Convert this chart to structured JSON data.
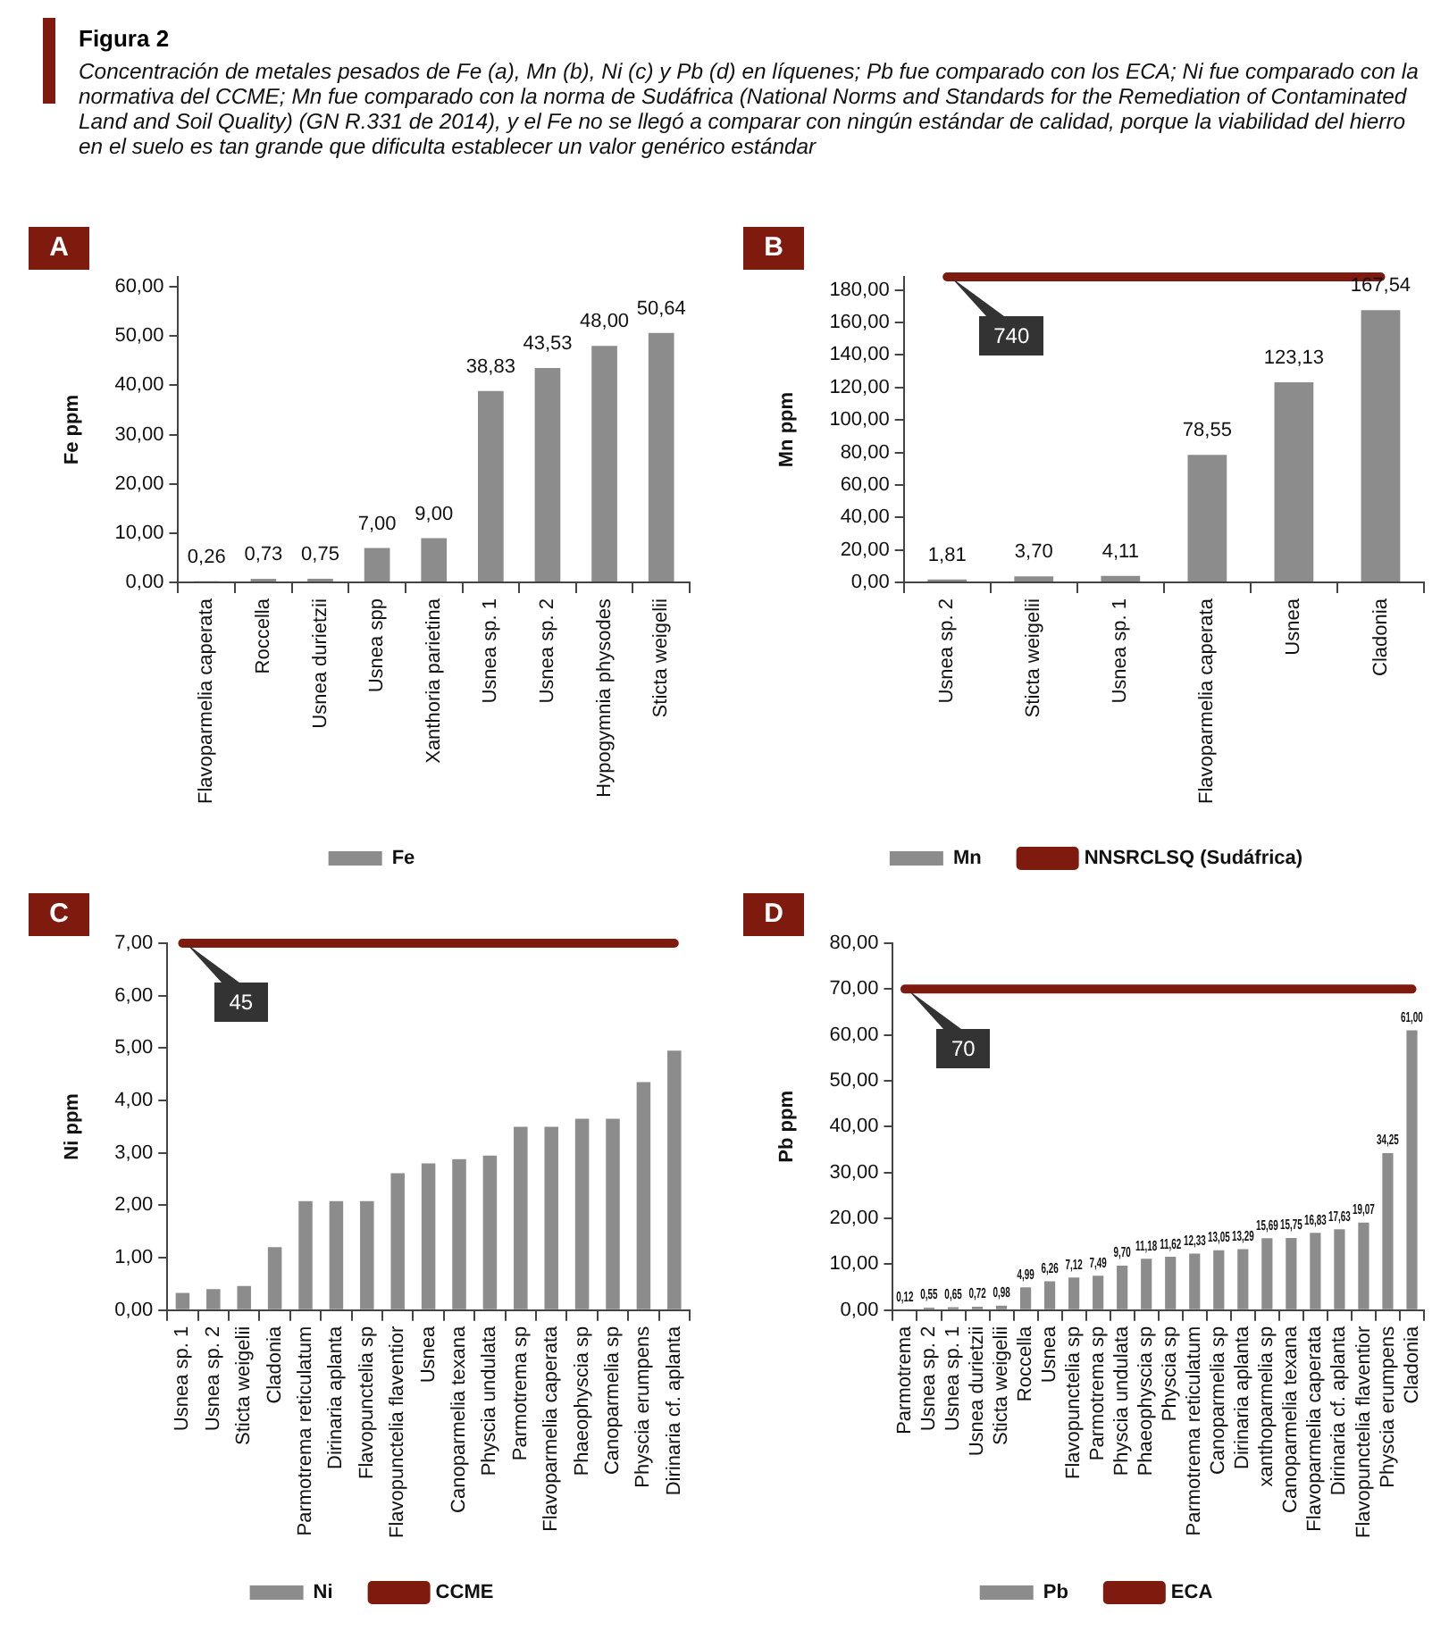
{
  "chart_data": [
    {
      "type": "bar",
      "title": "Figura 2",
      "subtitle": "Concentración de metales pesados de Fe (a), Mn (b), Ni (c) y Pb (d) en líquenes; Pb fue comparado con los ECA; Ni fue comparado con la normativa del CCME; Mn fue comparado con la norma de Sudáfrica (National Norms and Standards for the Remediation of Contaminated Land and Soil Quality) (GN R.331 de 2014), y el Fe no se llegó a comparar con ningún estándar de calidad, porque la viabilidad del hierro en el suelo es tan grande que dificulta establecer un valor genérico estándar",
      "annotations": [
        "A"
      ],
      "ylabel": "Fe ppm",
      "categories": [
        "Flavoparmelia caperata",
        "Roccella",
        "Usnea durietzii",
        "Usnea spp",
        "Xanthoria parietina",
        "Usnea sp. 1",
        "Usnea sp. 2",
        "Hypogymnia physodes",
        "Sticta weigelii"
      ],
      "series": [
        {
          "name": "Fe",
          "color": "#8c8c8c",
          "values": [
            0.26,
            0.73,
            0.75,
            7.0,
            9.0,
            38.83,
            43.53,
            48.0,
            50.64
          ],
          "value_labels": [
            "0,26",
            "0,73",
            "0,75",
            "7,00",
            "9,00",
            "38,83",
            "43,53",
            "48,00",
            "50,64"
          ]
        }
      ],
      "ylim": [
        0,
        62
      ],
      "yticks": [
        {
          "value": 0,
          "label": "0,00"
        },
        {
          "value": 10,
          "label": "10,00"
        },
        {
          "value": 20,
          "label": "20,00"
        },
        {
          "value": 30,
          "label": "30,00"
        },
        {
          "value": 40,
          "label": "40,00"
        },
        {
          "value": 50,
          "label": "50,00"
        },
        {
          "value": 60,
          "label": "60,00"
        }
      ],
      "grid": false,
      "legend": "bottom"
    },
    {
      "type": "bar",
      "annotations": [
        "B",
        "740"
      ],
      "ylabel": "Mn ppm",
      "categories": [
        "Usnea sp. 2",
        "Sticta weigelii",
        "Usnea sp. 1",
        "Flavoparmelia caperata",
        "Usnea",
        "Cladonia"
      ],
      "series": [
        {
          "name": "Mn",
          "color": "#8c8c8c",
          "values": [
            1.81,
            3.7,
            4.11,
            78.55,
            123.13,
            167.54
          ],
          "value_labels": [
            "1,81",
            "3,70",
            "4,11",
            "78,55",
            "123,13",
            "167,54"
          ]
        },
        {
          "name": "NNSRCLSQ (Sudáfrica)",
          "type": "line",
          "color": "#7f1a0e",
          "values": [
            188,
            188,
            188,
            188,
            188,
            188
          ]
        }
      ],
      "ylim": [
        0,
        188
      ],
      "yticks": [
        {
          "value": 0,
          "label": "0,00"
        },
        {
          "value": 20,
          "label": "20,00"
        },
        {
          "value": 40,
          "label": "40,00"
        },
        {
          "value": 60,
          "label": "60,00"
        },
        {
          "value": 80,
          "label": "80,00"
        },
        {
          "value": 100,
          "label": "100,00"
        },
        {
          "value": 120,
          "label": "120,00"
        },
        {
          "value": 140,
          "label": "140,00"
        },
        {
          "value": 160,
          "label": "160,00"
        },
        {
          "value": 180,
          "label": "180,00"
        }
      ],
      "grid": false,
      "legend": "bottom",
      "marker": "none"
    },
    {
      "type": "bar",
      "annotations": [
        "C",
        "45"
      ],
      "ylabel": "Ni ppm",
      "categories": [
        "Usnea sp. 1",
        "Usnea sp. 2",
        "Sticta weigelii",
        "Cladonia",
        "Parmotrema reticulatum",
        "Dirinaria aplanta",
        "Flavopunctelia sp",
        "Flavopunctelia flaventior",
        "Usnea",
        "Canoparmelia texana",
        "Physcia undulata",
        "Parmotrema sp",
        "Flavoparmelia caperata",
        "Phaeophyscia sp",
        "Canoparmelia sp",
        "Physcia erumpens",
        "Dirinaria cf. aplanta"
      ],
      "series": [
        {
          "name": "Ni",
          "color": "#8c8c8c",
          "values": [
            0.33,
            0.4,
            0.46,
            1.2,
            2.08,
            2.08,
            2.08,
            2.61,
            2.8,
            2.88,
            2.95,
            3.5,
            3.5,
            3.65,
            3.65,
            4.35,
            4.95
          ]
        },
        {
          "name": "CCME",
          "type": "line",
          "color": "#7f1a0e",
          "values": [
            7,
            7,
            7,
            7,
            7,
            7,
            7,
            7,
            7,
            7,
            7,
            7,
            7,
            7,
            7,
            7,
            7
          ]
        }
      ],
      "ylim": [
        0,
        7
      ],
      "yticks": [
        {
          "value": 0,
          "label": "0,00"
        },
        {
          "value": 1,
          "label": "1,00"
        },
        {
          "value": 2,
          "label": "2,00"
        },
        {
          "value": 3,
          "label": "3,00"
        },
        {
          "value": 4,
          "label": "4,00"
        },
        {
          "value": 5,
          "label": "5,00"
        },
        {
          "value": 6,
          "label": "6,00"
        },
        {
          "value": 7,
          "label": "7,00"
        }
      ],
      "grid": false,
      "legend": "bottom",
      "marker": "none"
    },
    {
      "type": "bar",
      "annotations": [
        "D",
        "70"
      ],
      "ylabel": "Pb ppm",
      "categories": [
        "Parmotrema",
        "Usnea sp. 2",
        "Usnea sp. 1",
        "Usnea durietzii",
        "Sticta weigelii",
        "Roccella",
        "Usnea",
        "Flavopunctelia sp",
        "Parmotrema sp",
        "Physcia undulata",
        "Phaeophyscia sp",
        "Physcia sp",
        "Parmotrema reticulatum",
        "Canoparmelia sp",
        "Dirinaria aplanta",
        "xanthoparmelia sp",
        "Canoparmelia texana",
        "Flavoparmelia caperata",
        "Dirinaria cf. aplanta",
        "Flavopunctelia flaventior",
        "Physcia erumpens",
        "Cladonia"
      ],
      "series": [
        {
          "name": "Pb",
          "color": "#8c8c8c",
          "values": [
            0.12,
            0.55,
            0.65,
            0.72,
            0.98,
            4.99,
            6.26,
            7.12,
            7.49,
            9.7,
            11.18,
            11.62,
            12.33,
            13.05,
            13.29,
            15.69,
            15.75,
            16.83,
            17.63,
            19.07,
            34.25,
            61.0
          ],
          "value_labels": [
            "0,12",
            "0,55",
            "0,65",
            "0,72",
            "0,98",
            "4,99",
            "6,26",
            "7,12",
            "7,49",
            "9,70",
            "11,18",
            "11,62",
            "12,33",
            "13,05",
            "13,29",
            "15,69",
            "15,75",
            "16,83",
            "17,63",
            "19,07",
            "34,25",
            "61,00"
          ]
        },
        {
          "name": "ECA",
          "type": "line",
          "color": "#7f1a0e",
          "values": [
            70,
            70,
            70,
            70,
            70,
            70,
            70,
            70,
            70,
            70,
            70,
            70,
            70,
            70,
            70,
            70,
            70,
            70,
            70,
            70,
            70,
            70
          ]
        }
      ],
      "ylim": [
        0,
        80
      ],
      "yticks": [
        {
          "value": 0,
          "label": "0,00"
        },
        {
          "value": 10,
          "label": "10,00"
        },
        {
          "value": 20,
          "label": "20,00"
        },
        {
          "value": 30,
          "label": "30,00"
        },
        {
          "value": 40,
          "label": "40,00"
        },
        {
          "value": 50,
          "label": "50,00"
        },
        {
          "value": 60,
          "label": "60,00"
        },
        {
          "value": 70,
          "label": "70,00"
        },
        {
          "value": 80,
          "label": "80,00"
        }
      ],
      "grid": false,
      "legend": "bottom",
      "marker": "none"
    }
  ]
}
